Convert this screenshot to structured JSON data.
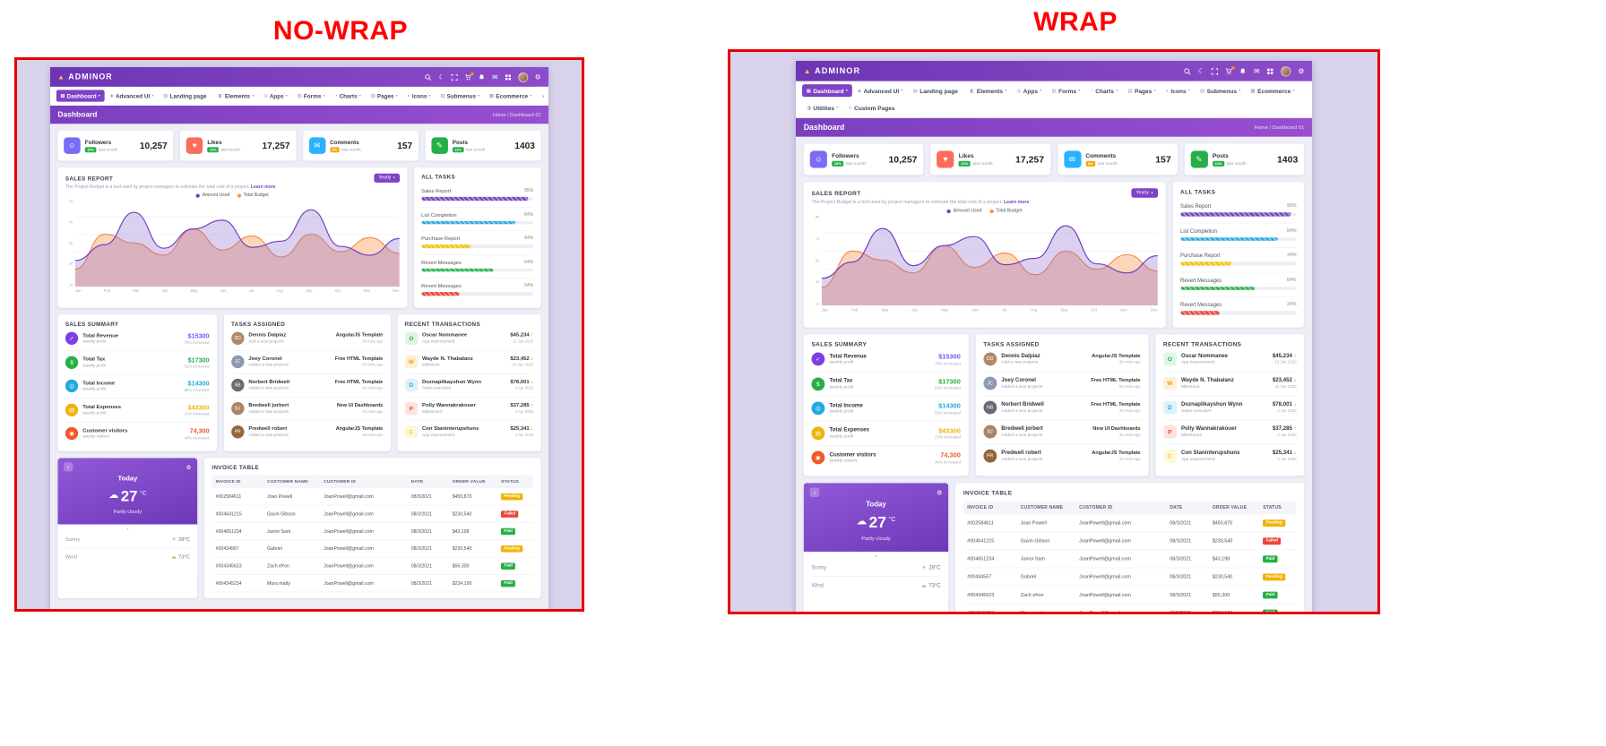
{
  "page": {
    "left_label": "NO-WRAP",
    "right_label": "WRAP"
  },
  "icons": {
    "brand_mark": "▲",
    "moon": "☾",
    "mail": "✉",
    "gear": "⚙",
    "scroll": "›",
    "back": "‹",
    "collapse": "▴",
    "cloud": "☁",
    "caret": "▾"
  },
  "header": {
    "brand": "ADMINOR"
  },
  "nav": {
    "items_main": [
      {
        "icon": "▦",
        "label": "Dashboard",
        "caret": "▾"
      },
      {
        "icon": "◈",
        "label": "Advanced UI",
        "caret": "▾"
      },
      {
        "icon": "▤",
        "label": "Landing page",
        "caret": ""
      },
      {
        "icon": "◧",
        "label": "Elements",
        "caret": "▾"
      },
      {
        "icon": "◎",
        "label": "Apps",
        "caret": "▾"
      },
      {
        "icon": "▥",
        "label": "Forms",
        "caret": "▾"
      },
      {
        "icon": "◔",
        "label": "Charts",
        "caret": "▾"
      },
      {
        "icon": "▧",
        "label": "Pages",
        "caret": "▾"
      },
      {
        "icon": "◐",
        "label": "Icons",
        "caret": "▾"
      },
      {
        "icon": "▨",
        "label": "Submenus",
        "caret": "▾"
      },
      {
        "icon": "▩",
        "label": "Ecommerce",
        "caret": "▾"
      }
    ],
    "items_overflow": [
      {
        "icon": "◨",
        "label": "Utilities",
        "caret": "▾"
      },
      {
        "icon": "◇",
        "label": "Custom Pages",
        "caret": ""
      }
    ]
  },
  "banner": {
    "title": "Dashboard",
    "breadcrumb": "Home / Dashboard 01"
  },
  "stats": [
    {
      "icon": "☺",
      "title": "Followers",
      "badge": "10%",
      "badge_color": "#26af48",
      "period": "last month",
      "value": "10,257",
      "color": "#7b6cf6"
    },
    {
      "icon": "♥",
      "title": "Likes",
      "badge": "12%",
      "badge_color": "#26af48",
      "period": "last month",
      "value": "17,257",
      "color": "#fa6e5a"
    },
    {
      "icon": "✉",
      "title": "Comments",
      "badge": "8%",
      "badge_color": "#f5a70b",
      "period": "last month",
      "value": "157",
      "color": "#29b2fe"
    },
    {
      "icon": "✎",
      "title": "Posts",
      "badge": "21%",
      "badge_color": "#26af48",
      "period": "last month",
      "value": "1403",
      "color": "#26af48"
    }
  ],
  "sales_report": {
    "title": "SALES REPORT",
    "subtitle": "The Project Budget is a tool used by project managers to estimate the total cost of a project.",
    "link": "Learn more",
    "range_button": "Yearly",
    "legend": [
      {
        "label": "Amount Used",
        "color": "#6f42c1"
      },
      {
        "label": "Total Budget",
        "color": "#f9934e"
      }
    ],
    "months": [
      "Jan",
      "Feb",
      "Mar",
      "Apr",
      "May",
      "Jun",
      "Jul",
      "Aug",
      "Sep",
      "Oct",
      "Nov",
      "Dec"
    ],
    "chart": {
      "type": "area",
      "max": 100,
      "yticks": [
        "90",
        "70",
        "50",
        "30",
        "10"
      ],
      "series": [
        {
          "name": "Amount Used",
          "stroke": "#6f42c1",
          "fill": "#8a63d2",
          "fill_opacity": 0.3,
          "values": [
            30,
            48,
            85,
            44,
            66,
            76,
            45,
            52,
            88,
            46,
            36,
            55
          ]
        },
        {
          "name": "Total Budget",
          "stroke": "#f78f4e",
          "fill": "#fbb27e",
          "fill_opacity": 0.55,
          "values": [
            20,
            60,
            50,
            36,
            66,
            42,
            58,
            34,
            60,
            40,
            56,
            38
          ]
        }
      ]
    }
  },
  "all_tasks": {
    "title": "ALL TASKS",
    "items": [
      {
        "label": "Sales Report",
        "pct": "95%",
        "color": "#6f42c1"
      },
      {
        "label": "List Completion",
        "pct": "84%",
        "color": "#23a8e0"
      },
      {
        "label": "Purchase Report",
        "pct": "44%",
        "color": "#f0c30b"
      },
      {
        "label": "Revert Messages",
        "pct": "64%",
        "color": "#26af48"
      },
      {
        "label": "Revert Messages",
        "pct": "34%",
        "color": "#e8453c"
      }
    ]
  },
  "sales_summary": {
    "title": "SALES SUMMARY",
    "rows": [
      {
        "icon": "✓",
        "color": "#7b3fe4",
        "title": "Total Revenue",
        "sub": "weekly profit",
        "value": "$15300",
        "value_color": "#6a5cf5",
        "note": "70% increased"
      },
      {
        "icon": "$",
        "color": "#26af48",
        "title": "Total Tax",
        "sub": "weekly profit",
        "value": "$17300",
        "value_color": "#26af48",
        "note": "62% increased"
      },
      {
        "icon": "◎",
        "color": "#23a8e0",
        "title": "Total Income",
        "sub": "weekly profit",
        "value": "$14300",
        "value_color": "#23a8e0",
        "note": "55% increased"
      },
      {
        "icon": "▤",
        "color": "#f0b30b",
        "title": "Total Expenses",
        "sub": "weekly profit",
        "value": "$43300",
        "value_color": "#f0b30b",
        "note": "23% increased"
      },
      {
        "icon": "◉",
        "color": "#f0592a",
        "title": "Customer visitors",
        "sub": "weekly visitors",
        "value": "74,300",
        "value_color": "#f0592a",
        "note": "40% increased"
      }
    ]
  },
  "tasks_assigned": {
    "title": "TASKS ASSIGNED",
    "rows": [
      {
        "initials": "DD",
        "avatar_color": "#b08968",
        "name": "Dennis Dalpiaz",
        "sub": "Add a new projects",
        "tag": "AngularJS Template",
        "time": "30 mins ago"
      },
      {
        "initials": "JC",
        "avatar_color": "#8d99ae",
        "name": "Joey Coronel",
        "sub": "Added a new projects",
        "tag": "Free HTML Template",
        "time": "50 mins ago"
      },
      {
        "initials": "NB",
        "avatar_color": "#6d6875",
        "name": "Norbert Bridwell",
        "sub": "Added a new projects",
        "tag": "Free HTML Template",
        "time": "40 mins ago"
      },
      {
        "initials": "BJ",
        "avatar_color": "#a98467",
        "name": "Bredwell jorbert",
        "sub": "Added a new projects",
        "tag": "New UI Dashboards",
        "time": "45 mins ago"
      },
      {
        "initials": "PR",
        "avatar_color": "#936639",
        "name": "Predwell robert",
        "sub": "Added a new projects",
        "tag": "AngularJS Template",
        "time": "48 mins ago"
      }
    ]
  },
  "transactions": {
    "title": "RECENT TRANSACTIONS",
    "rows": [
      {
        "letter": "O",
        "letter_color": "#26af48",
        "bg": "#def7e5",
        "name": "Oscar Nommanee",
        "sub": "App improvement",
        "value": "$45,234",
        "arrow": "↑",
        "arrow_color": "#26af48",
        "date": "12 Jan 2020"
      },
      {
        "letter": "W",
        "letter_color": "#f09a0b",
        "bg": "#fdf0d8",
        "name": "Wayde N. Thabalanz",
        "sub": "Milestone",
        "value": "$23,452",
        "arrow": "↓",
        "arrow_color": "#e8453c",
        "date": "23 Jan 2020"
      },
      {
        "letter": "D",
        "letter_color": "#23a8e0",
        "bg": "#def2fb",
        "name": "Doznaplikayshun Wynn",
        "sub": "Sales executive",
        "value": "$78,001",
        "arrow": "↓",
        "arrow_color": "#e8453c",
        "date": "4 Apr 2020"
      },
      {
        "letter": "P",
        "letter_color": "#e8453c",
        "bg": "#fde3e1",
        "name": "Polly Wannakrakouer",
        "sub": "Milestone2",
        "value": "$37,285",
        "arrow": "↑",
        "arrow_color": "#26af48",
        "date": "4 Apr 2020"
      },
      {
        "letter": "C",
        "letter_color": "#f0c30b",
        "bg": "#fdf7d8",
        "name": "Con Staninterupshuns",
        "sub": "App improvement",
        "value": "$25,341",
        "arrow": "↓",
        "arrow_color": "#e8453c",
        "date": "4 Apr 2020"
      }
    ]
  },
  "weather": {
    "today": "Today",
    "temp": "27",
    "unit": "°C",
    "desc": "Partly cloudy",
    "rows": [
      {
        "label": "Sunny",
        "icon": "☀",
        "value": "28°C"
      },
      {
        "label": "Wind",
        "icon": "☁",
        "value": "73°C"
      }
    ]
  },
  "invoice": {
    "title": "INVOICE TABLE",
    "headers": [
      "INVOICE ID",
      "CUSTOMER NAME",
      "CUSTOMER ID",
      "DATE",
      "ORDER VALUE",
      "STATUS"
    ],
    "rows": [
      {
        "id": "#002584611",
        "name": "Joan Powell",
        "cid": "JoanPowell@gmail.com",
        "date": "08/3/2021",
        "value": "$450,870",
        "status": "Pending",
        "status_color": "#f0b30b"
      },
      {
        "id": "#004641215",
        "name": "Gavin Gibson",
        "cid": "JoanPowell@gmail.com",
        "date": "08/3/2021",
        "value": "$230,540",
        "status": "Failed",
        "status_color": "#e8453c"
      },
      {
        "id": "#004651234",
        "name": "Junior Sam",
        "cid": "JoanPowell@gmail.com",
        "date": "08/3/2021",
        "value": "$43,198",
        "status": "Paid",
        "status_color": "#26af48"
      },
      {
        "id": "#00434567",
        "name": "Gabriel",
        "cid": "JoanPowell@gmail.com",
        "date": "08/3/2021",
        "value": "$230,540",
        "status": "Pending",
        "status_color": "#f0b30b"
      },
      {
        "id": "#004345623",
        "name": "Zach efron",
        "cid": "JoanPowell@gmail.com",
        "date": "08/3/2021",
        "value": "$55,300",
        "status": "Paid",
        "status_color": "#26af48"
      },
      {
        "id": "#004345234",
        "name": "Mora matty",
        "cid": "JoanPowell@gmail.com",
        "date": "08/3/2021",
        "value": "$234,100",
        "status": "Paid",
        "status_color": "#26af48"
      }
    ]
  }
}
